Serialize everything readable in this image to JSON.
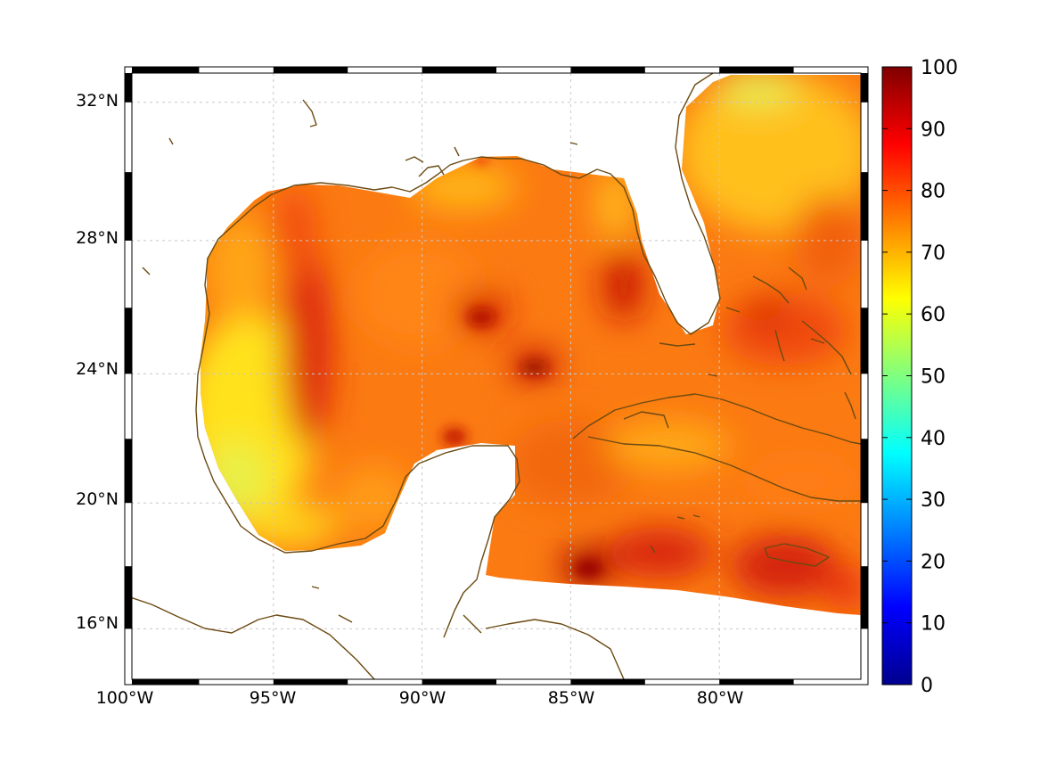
{
  "chart_data": {
    "type": "heatmap",
    "map": {
      "projection": "mercator",
      "region": "Gulf of Mexico and western Caribbean",
      "lon_range": [
        -100,
        -75
      ],
      "lat_range": [
        14.2,
        33
      ],
      "lon_ticks": [
        "100°W",
        "95°W",
        "90°W",
        "85°W",
        "80°W"
      ],
      "lat_ticks": [
        "32°N",
        "28°N",
        "24°N",
        "20°N",
        "16°N"
      ],
      "grid": true,
      "frame": "alternating black and white border"
    },
    "colorbar": {
      "colormap": "jet",
      "range": [
        0,
        100
      ],
      "ticks": [
        "0",
        "10",
        "20",
        "30",
        "40",
        "50",
        "60",
        "70",
        "80",
        "90",
        "100"
      ]
    },
    "field_summary": [
      {
        "area": "western Gulf coast off Texas and Tamaulipas",
        "value": 65
      },
      {
        "area": "Bay of Campeche",
        "value": 75
      },
      {
        "area": "central Gulf of Mexico",
        "value": 80
      },
      {
        "area": "band near 94°W",
        "value": 87
      },
      {
        "area": "off west Florida near 83°W 26.5°N",
        "value": 88
      },
      {
        "area": "southeast Gulf near 86°W 24°N",
        "value": 90
      },
      {
        "area": "Atlantic off Georgia and South Carolina",
        "value": 70
      },
      {
        "area": "Bahamas region",
        "value": 82
      },
      {
        "area": "northwestern Caribbean south of Cuba",
        "value": 80
      },
      {
        "area": "Caribbean near 83°W 17°N",
        "value": 92
      },
      {
        "area": "south of Jamaica",
        "value": 88
      }
    ],
    "colors": {
      "coastline": "#6b4a12",
      "grid": "#c8c8c8",
      "no_data": "#ffffff"
    }
  }
}
